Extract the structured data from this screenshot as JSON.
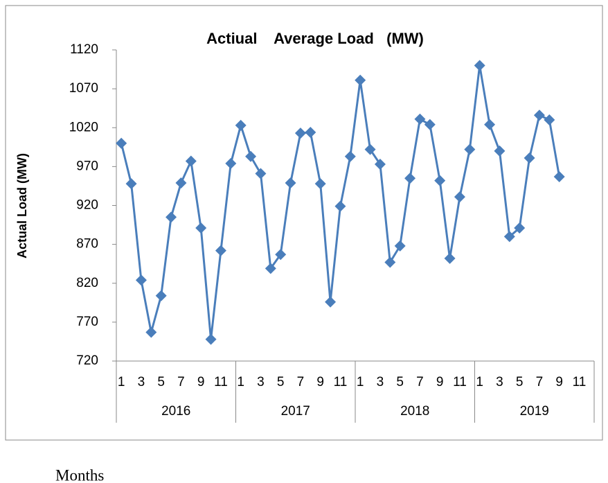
{
  "chart_data": {
    "type": "line",
    "title": "Actiual    Average Load   (MW)",
    "y_label": "Actual Load (MW)",
    "x_label": "Months",
    "categories": [
      "1",
      null,
      "3",
      null,
      "5",
      null,
      "7",
      null,
      "9",
      null,
      "11",
      null,
      "1",
      null,
      "3",
      null,
      "5",
      null,
      "7",
      null,
      "9",
      null,
      "11",
      null,
      "1",
      null,
      "3",
      null,
      "5",
      null,
      "7",
      null,
      "9",
      null,
      "11",
      null,
      "1",
      null,
      "3",
      null,
      "5",
      null,
      "7",
      null,
      "9",
      null,
      "11",
      null
    ],
    "x_groups": [
      "2016",
      "2017",
      "2018",
      "2019"
    ],
    "series": [
      {
        "name": "Actual Load",
        "color": "#4a7ebb",
        "values": [
          1000,
          948,
          824,
          757,
          804,
          905,
          949,
          977,
          891,
          748,
          862,
          974,
          1023,
          983,
          961,
          839,
          857,
          949,
          1013,
          1014,
          948,
          796,
          919,
          983,
          1081,
          992,
          973,
          847,
          868,
          955,
          1031,
          1024,
          952,
          852,
          931,
          992,
          1100,
          1024,
          990,
          880,
          891,
          981,
          1036,
          1030,
          957,
          null,
          null,
          null
        ]
      }
    ],
    "ylim": [
      720,
      1120
    ],
    "yticks": [
      720,
      770,
      820,
      870,
      920,
      970,
      1020,
      1070,
      1120
    ],
    "grid": false
  }
}
